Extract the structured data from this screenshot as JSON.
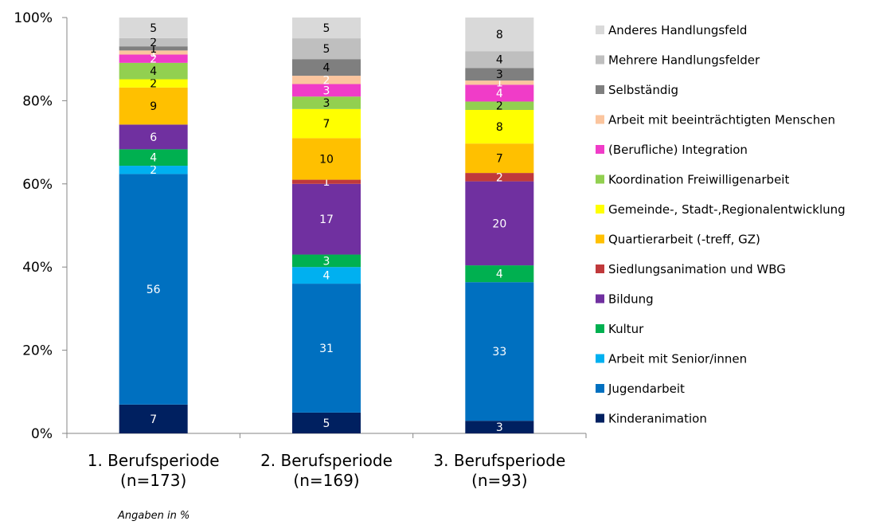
{
  "chart_data": {
    "type": "bar",
    "stacked": true,
    "percent_stacked": true,
    "categories": [
      "1. Berufsperiode (n=173)",
      "2. Berufsperiode (n=169)",
      "3. Berufsperiode (n=93)"
    ],
    "category_lines": [
      [
        "1. Berufsperiode",
        "(n=173)"
      ],
      [
        "2. Berufsperiode",
        "(n=169)"
      ],
      [
        "3. Berufsperiode",
        "(n=93)"
      ]
    ],
    "yticks": [
      "0%",
      "20%",
      "40%",
      "60%",
      "80%",
      "100%"
    ],
    "ylim": [
      0,
      100
    ],
    "legend_position": "right",
    "series": [
      {
        "name": "Kinderanimation",
        "color": "#002060",
        "label_color": "#ffffff",
        "values": [
          7,
          5,
          3
        ]
      },
      {
        "name": "Jugendarbeit",
        "color": "#0070C0",
        "label_color": "#ffffff",
        "values": [
          56,
          31,
          33
        ]
      },
      {
        "name": "Arbeit mit Senior/innen",
        "color": "#00B0F0",
        "label_color": "#ffffff",
        "values": [
          2,
          4,
          null
        ]
      },
      {
        "name": "Kultur",
        "color": "#00B050",
        "label_color": "#ffffff",
        "values": [
          4,
          3,
          4
        ]
      },
      {
        "name": "Bildung",
        "color": "#7030A0",
        "label_color": "#ffffff",
        "values": [
          6,
          17,
          20
        ]
      },
      {
        "name": "Siedlungsanimation und WBG",
        "color": "#C0393B",
        "label_color": "#ffffff",
        "values": [
          null,
          1,
          2
        ]
      },
      {
        "name": "Quartierarbeit (-treff, GZ)",
        "color": "#FFC000",
        "label_color": "#000000",
        "values": [
          9,
          10,
          7
        ]
      },
      {
        "name": "Gemeinde-, Stadt-,Regionalentwicklung",
        "color": "#FFFF00",
        "label_color": "#000000",
        "values": [
          2,
          7,
          8
        ]
      },
      {
        "name": "Koordination Freiwilligenarbeit",
        "color": "#92D050",
        "label_color": "#000000",
        "values": [
          4,
          3,
          2
        ]
      },
      {
        "name": "(Berufliche) Integration",
        "color": "#F03CC8",
        "label_color": "#ffffff",
        "values": [
          2,
          3,
          4
        ]
      },
      {
        "name": "Arbeit mit beeinträchtigten Menschen",
        "color": "#FBC59E",
        "label_color": "#ffffff",
        "values": [
          1,
          2,
          1
        ]
      },
      {
        "name": "Selbständig",
        "color": "#7F7F7F",
        "label_color": "#000000",
        "values": [
          1,
          4,
          3
        ]
      },
      {
        "name": "Mehrere Handlungsfelder",
        "color": "#BFBFBF",
        "label_color": "#000000",
        "values": [
          2,
          5,
          4
        ]
      },
      {
        "name": "Anderes Handlungsfeld",
        "color": "#D9D9D9",
        "label_color": "#000000",
        "values": [
          5,
          5,
          8
        ]
      }
    ],
    "note": "Angaben in %"
  }
}
